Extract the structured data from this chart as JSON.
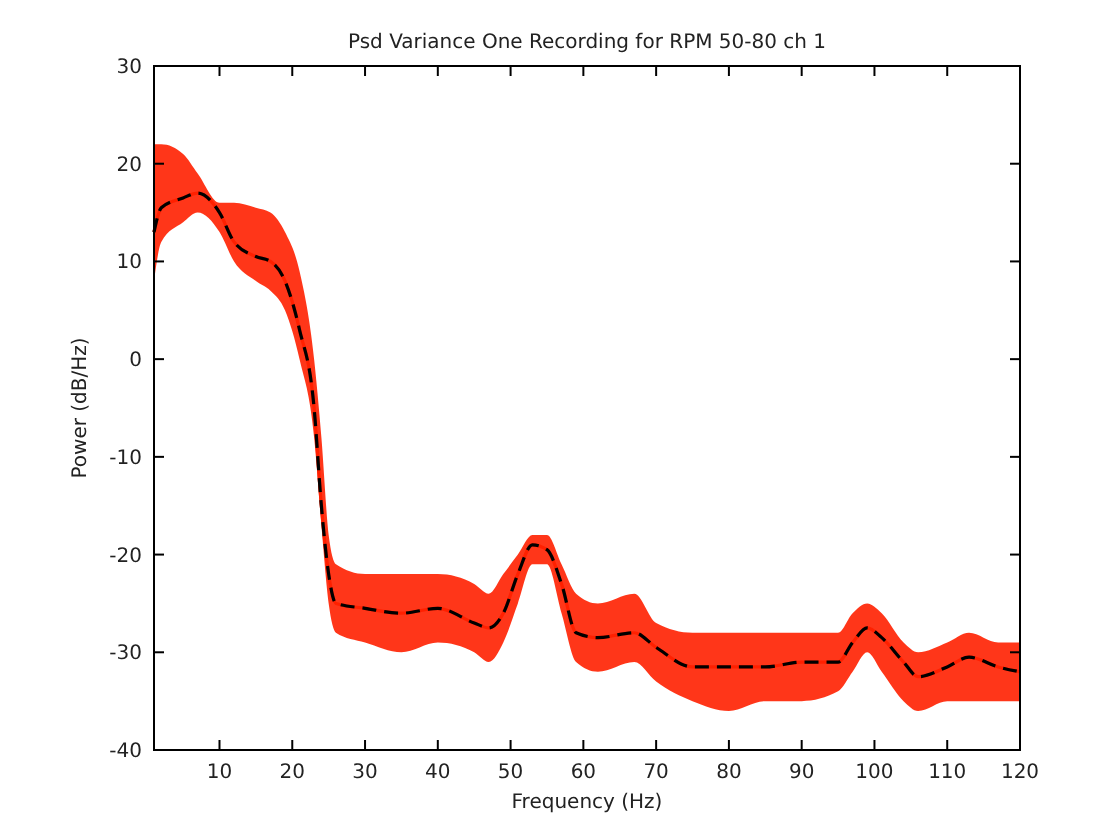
{
  "chart_data": {
    "type": "line",
    "title": "Psd Variance One Recording for RPM 50-80 ch 1",
    "xlabel": "Frequency (Hz)",
    "ylabel": "Power (dB/Hz)",
    "xlim": [
      1,
      120
    ],
    "xticks": [
      10,
      20,
      30,
      40,
      50,
      60,
      70,
      80,
      90,
      100,
      110,
      120
    ],
    "ylim": [
      -40,
      30
    ],
    "yticks": [
      -40,
      -30,
      -20,
      -10,
      0,
      10,
      20,
      30
    ],
    "grid": false,
    "x": [
      1,
      2,
      5,
      7,
      10,
      12,
      15,
      17,
      19,
      21,
      23,
      24,
      25,
      26,
      30,
      35,
      40,
      45,
      47,
      49,
      51,
      53,
      55,
      57,
      59,
      62,
      67,
      70,
      75,
      80,
      85,
      90,
      95,
      97,
      99,
      101,
      104,
      106,
      110,
      113,
      117,
      120
    ],
    "series": [
      {
        "color": "#ff2000",
        "line_style": "solid",
        "values": [
          13,
          15.5,
          16.5,
          17,
          15,
          12,
          10.5,
          10,
          8,
          3,
          -5,
          -15,
          -22,
          -25,
          -25.5,
          -26,
          -25.5,
          -27,
          -27.5,
          -26,
          -22,
          -19,
          -19.5,
          -23,
          -28,
          -28.5,
          -28,
          -29.5,
          -31.5,
          -31.5,
          -31.5,
          -31,
          -31,
          -29,
          -27.5,
          -28.5,
          -31,
          -32.5,
          -31.5,
          -30.5,
          -31.5,
          -32
        ],
        "lower": [
          8,
          12,
          14,
          15,
          13,
          10,
          8,
          7,
          5,
          0,
          -8,
          -17,
          -25,
          -28,
          -29,
          -30,
          -29,
          -30,
          -31,
          -29,
          -25,
          -21,
          -21,
          -26,
          -31,
          -32,
          -31,
          -33,
          -35,
          -36,
          -35,
          -35,
          -34,
          -32,
          -30,
          -32,
          -35,
          -36,
          -35,
          -35,
          -35,
          -35
        ],
        "upper": [
          22,
          22,
          21,
          19,
          16,
          16,
          15.5,
          15,
          13,
          9,
          0,
          -8,
          -18,
          -21,
          -22,
          -22,
          -22,
          -23,
          -24,
          -22,
          -20,
          -18,
          -18,
          -21,
          -24,
          -25,
          -24,
          -27,
          -28,
          -28,
          -28,
          -28,
          -28,
          -26,
          -25,
          -26,
          -29,
          -30,
          -29,
          -28,
          -29,
          -29
        ]
      },
      {
        "color": "#000000",
        "line_style": "dashed",
        "values": [
          13,
          15.5,
          16.5,
          17,
          15,
          12,
          10.5,
          10,
          8,
          3,
          -5,
          -15,
          -22,
          -25,
          -25.5,
          -26,
          -25.5,
          -27,
          -27.5,
          -26,
          -22,
          -19,
          -19.5,
          -23,
          -28,
          -28.5,
          -28,
          -29.5,
          -31.5,
          -31.5,
          -31.5,
          -31,
          -31,
          -29,
          -27.5,
          -28.5,
          -31,
          -32.5,
          -31.5,
          -30.5,
          -31.5,
          -32
        ]
      }
    ]
  }
}
